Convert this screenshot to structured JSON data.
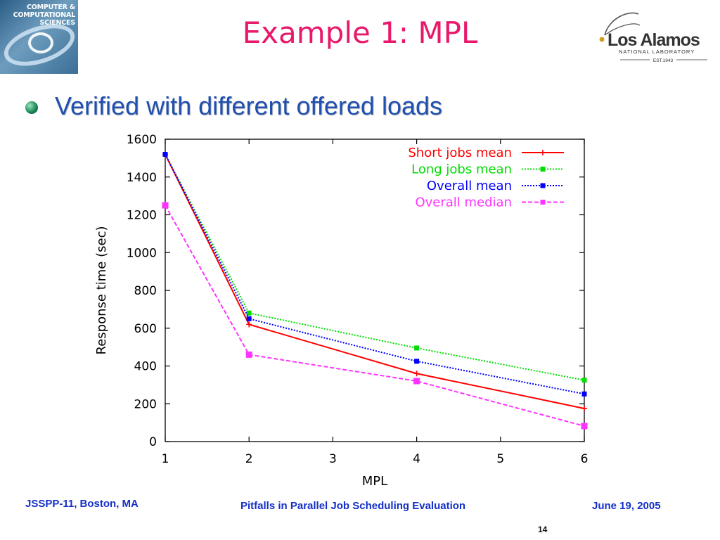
{
  "header": {
    "title": "Example 1: MPL",
    "left_logo_text": [
      "COMPUTER &",
      "COMPUTATIONAL",
      "SCIENCES"
    ],
    "right_logo": {
      "name": "Los Alamos",
      "subtitle": "NATIONAL LABORATORY",
      "est": "EST.1943"
    }
  },
  "bullet": {
    "text": "Verified with different offered loads",
    "icon": "sphere-bullet-icon"
  },
  "chart_data": {
    "type": "line",
    "xlabel": "MPL",
    "ylabel": "Response time (sec)",
    "xlim": [
      1,
      6
    ],
    "ylim": [
      0,
      1600
    ],
    "x_ticks": [
      1,
      2,
      3,
      4,
      5,
      6
    ],
    "y_ticks": [
      0,
      200,
      400,
      600,
      800,
      1000,
      1200,
      1400,
      1600
    ],
    "legend_position": "top-right",
    "grid": false,
    "series": [
      {
        "name": "Short jobs mean",
        "color": "#ff0000",
        "dash": "solid",
        "marker": "plus",
        "x": [
          1,
          2,
          4,
          6
        ],
        "y": [
          1520,
          620,
          360,
          175
        ]
      },
      {
        "name": "Long jobs mean",
        "color": "#00dd00",
        "dash": "dotted",
        "marker": "square",
        "x": [
          1,
          2,
          4,
          6
        ],
        "y": [
          1520,
          680,
          495,
          325
        ]
      },
      {
        "name": "Overall mean",
        "color": "#0000ff",
        "dash": "dotted",
        "marker": "square",
        "x": [
          1,
          2,
          4,
          6
        ],
        "y": [
          1520,
          650,
          425,
          252
        ]
      },
      {
        "name": "Overall median",
        "color": "#ff33ff",
        "dash": "dashed",
        "marker": "square",
        "x": [
          1,
          2,
          4,
          6
        ],
        "y": [
          1250,
          460,
          320,
          82
        ]
      }
    ]
  },
  "footer": {
    "left": "JSSPP-11, Boston, MA",
    "center": "Pitfalls in Parallel Job Scheduling Evaluation",
    "right": "June 19, 2005",
    "page": "14"
  }
}
